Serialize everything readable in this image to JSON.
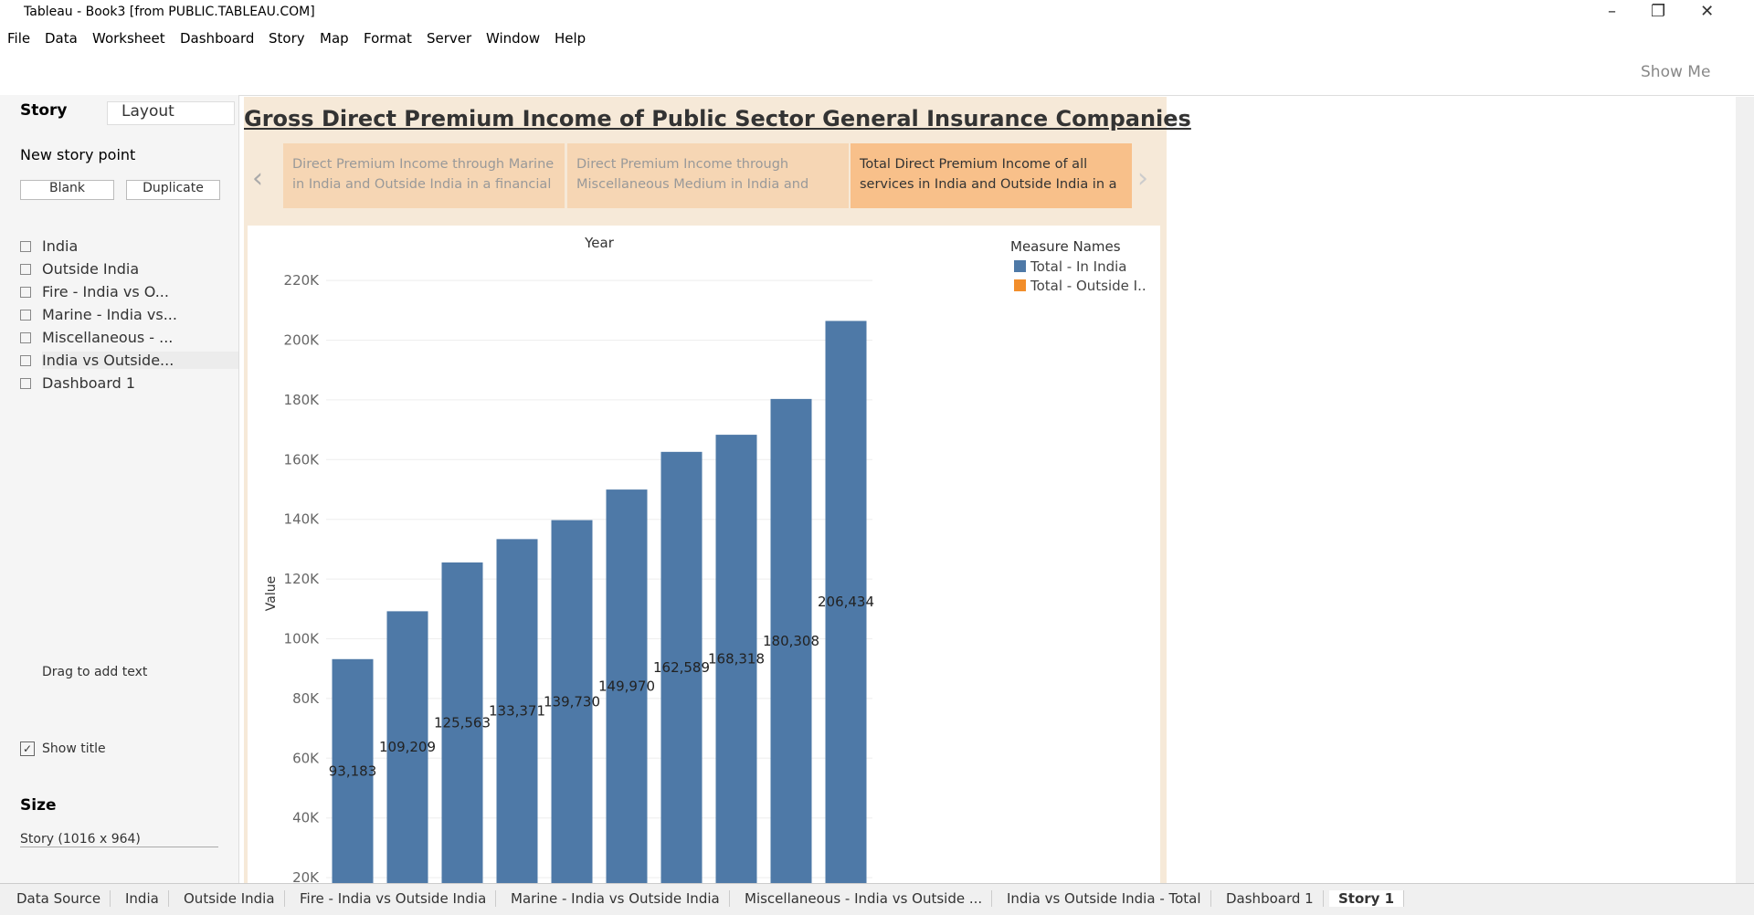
{
  "window_title": "Tableau - Book3 [from PUBLIC.TABLEAU.COM]",
  "menu": [
    "File",
    "Data",
    "Worksheet",
    "Dashboard",
    "Story",
    "Map",
    "Format",
    "Server",
    "Window",
    "Help"
  ],
  "toolbar": {
    "show_me": "Show Me"
  },
  "sidebar": {
    "tabs": [
      "Story",
      "Layout"
    ],
    "new_story_point": "New story point",
    "buttons": [
      "Blank",
      "Duplicate"
    ],
    "sheets": [
      "India",
      "Outside India",
      "Fire - India vs O...",
      "Marine - India vs...",
      "Miscellaneous - ...",
      "India vs Outside...",
      "Dashboard 1"
    ],
    "drag_text": "Drag to add text",
    "show_title": "Show title",
    "size_heading": "Size",
    "size_value": "Story (1016 x 964)"
  },
  "story": {
    "title": "Gross Direct Premium Income of Public Sector General Insurance Companies",
    "points": [
      "Direct Premium Income through Marine in India and Outside India in a financial",
      "Direct Premium Income through Miscellaneous Medium in India and",
      "Total Direct Premium Income of all services in India and Outside India in a"
    ]
  },
  "chart_data": {
    "type": "bar",
    "header": "Year",
    "y_label": "Value",
    "legend_title": "Measure Names",
    "categories": [
      null,
      null,
      null,
      null,
      null,
      null,
      null,
      null,
      null,
      null
    ],
    "series": [
      {
        "name": "Total - In India",
        "color": "#4e79a7",
        "values": [
          93183,
          109209,
          125563,
          133371,
          139730,
          149970,
          162589,
          168318,
          180308,
          206434
        ],
        "value_labels": [
          "93,183",
          "109,209",
          "125,563",
          "133,371",
          "139,730",
          "149,970",
          "162,589",
          "168,318",
          "180,308",
          "206,434"
        ]
      },
      {
        "name": "Total - Outside I..",
        "color": "#f28e2b",
        "values": [
          null,
          null,
          null,
          null,
          null,
          null,
          null,
          null,
          null,
          null
        ]
      }
    ],
    "ylim": [
      18200,
      224000
    ],
    "yticks": [
      {
        "value": 20000,
        "label": "20K"
      },
      {
        "value": 40000,
        "label": "40K"
      },
      {
        "value": 60000,
        "label": "60K"
      },
      {
        "value": 80000,
        "label": "80K"
      },
      {
        "value": 100000,
        "label": "100K"
      },
      {
        "value": 120000,
        "label": "120K"
      },
      {
        "value": 140000,
        "label": "140K"
      },
      {
        "value": 160000,
        "label": "160K"
      },
      {
        "value": 180000,
        "label": "180K"
      },
      {
        "value": 200000,
        "label": "200K"
      },
      {
        "value": 220000,
        "label": "220K"
      }
    ],
    "grid": true
  },
  "bottom_tabs": [
    "Data Source",
    "India",
    "Outside India",
    "Fire - India vs Outside India",
    "Marine - India vs Outside India",
    "Miscellaneous - India vs Outside ...",
    "India vs Outside India - Total",
    "Dashboard 1",
    "Story 1"
  ]
}
